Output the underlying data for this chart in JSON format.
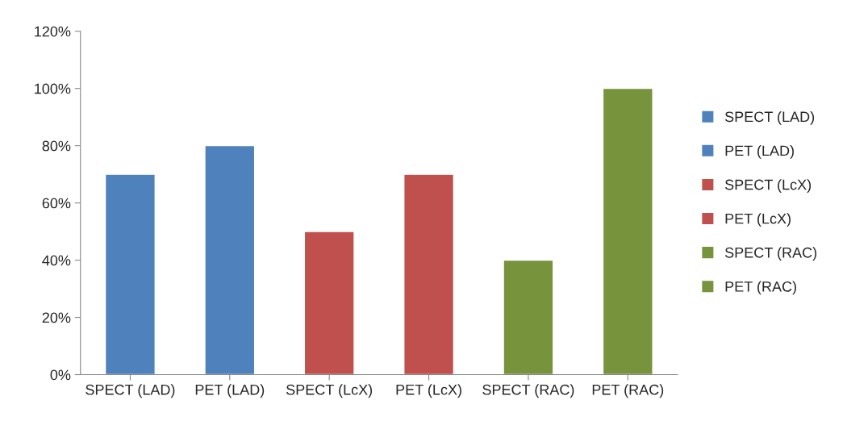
{
  "chart_data": {
    "type": "bar",
    "categories": [
      "SPECT (LAD)",
      "PET (LAD)",
      "SPECT (LcX)",
      "PET (LcX)",
      "SPECT (RAC)",
      "PET (RAC)"
    ],
    "series": [
      {
        "name": "SPECT (LAD)",
        "color": "#4f81bd",
        "values": [
          70,
          null,
          null,
          null,
          null,
          null
        ]
      },
      {
        "name": "PET (LAD)",
        "color": "#4f81bd",
        "values": [
          null,
          80,
          null,
          null,
          null,
          null
        ]
      },
      {
        "name": "SPECT (LcX)",
        "color": "#c0504d",
        "values": [
          null,
          null,
          50,
          null,
          null,
          null
        ]
      },
      {
        "name": "PET (LcX)",
        "color": "#c0504d",
        "values": [
          null,
          null,
          null,
          70,
          null,
          null
        ]
      },
      {
        "name": "SPECT (RAC)",
        "color": "#77933c",
        "values": [
          null,
          null,
          null,
          null,
          40,
          null
        ]
      },
      {
        "name": "PET (RAC)",
        "color": "#77933c",
        "values": [
          null,
          null,
          null,
          null,
          null,
          100
        ]
      }
    ],
    "ylim": [
      0,
      120
    ],
    "yticks": [
      {
        "value": 0,
        "label": "0%"
      },
      {
        "value": 20,
        "label": "20%"
      },
      {
        "value": 40,
        "label": "40%"
      },
      {
        "value": 60,
        "label": "60%"
      },
      {
        "value": 80,
        "label": "80%"
      },
      {
        "value": 100,
        "label": "100%"
      },
      {
        "value": 120,
        "label": "120%"
      }
    ],
    "grid": false,
    "legend": "right"
  }
}
